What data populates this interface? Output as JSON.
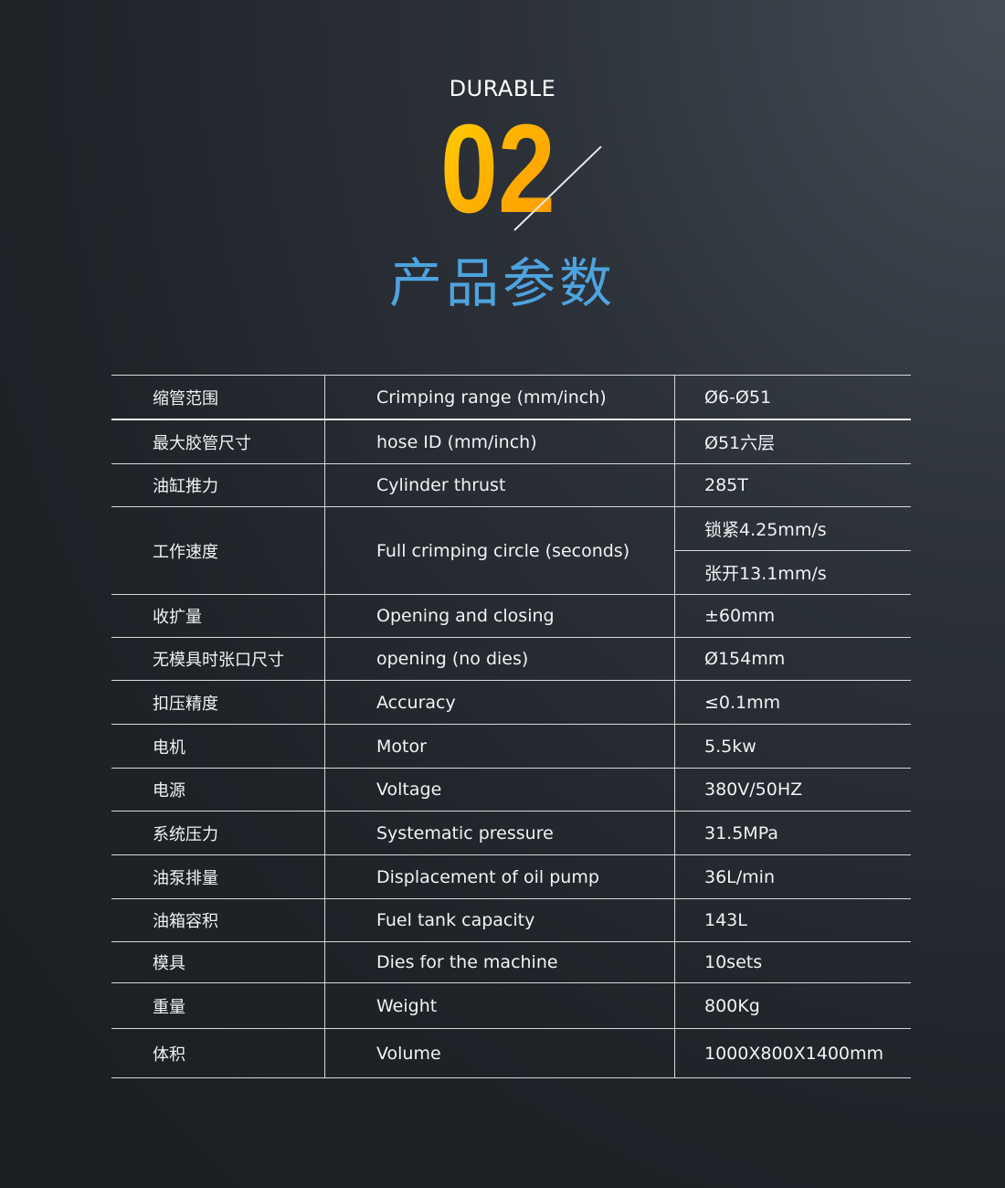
{
  "header": {
    "eyebrow": "DURABLE",
    "number": "02",
    "title": "产品参数",
    "accent_color": "#4ea3dd",
    "number_color": "#ffb000"
  },
  "specs": [
    {
      "zh": "缩管范围",
      "en": "Crimping range (mm/inch)",
      "values": [
        "Ø6-Ø51"
      ]
    },
    {
      "zh": "最大胶管尺寸",
      "en": "hose ID (mm/inch)",
      "values": [
        "Ø51六层"
      ]
    },
    {
      "zh": "油缸推力",
      "en": "Cylinder thrust",
      "values": [
        "285T"
      ]
    },
    {
      "zh": "工作速度",
      "en": "Full crimping circle (seconds)",
      "values": [
        "锁紧4.25mm/s",
        "张开13.1mm/s"
      ]
    },
    {
      "zh": "收扩量",
      "en": "Opening and closing",
      "values": [
        "±60mm"
      ]
    },
    {
      "zh": "无模具时张口尺寸",
      "en": "opening (no dies)",
      "values": [
        "Ø154mm"
      ]
    },
    {
      "zh": "扣压精度",
      "en": "Accuracy",
      "values": [
        "≤0.1mm"
      ]
    },
    {
      "zh": "电机",
      "en": "Motor",
      "values": [
        "5.5kw"
      ]
    },
    {
      "zh": "电源",
      "en": "Voltage",
      "values": [
        "380V/50HZ"
      ]
    },
    {
      "zh": "系统压力",
      "en": "Systematic pressure",
      "values": [
        "31.5MPa"
      ]
    },
    {
      "zh": "油泵排量",
      "en": "Displacement of oil pump",
      "values": [
        "36L/min"
      ]
    },
    {
      "zh": "油箱容积",
      "en": "Fuel tank capacity",
      "values": [
        "143L"
      ]
    },
    {
      "zh": "模具",
      "en": "Dies for the machine",
      "values": [
        "10sets"
      ]
    },
    {
      "zh": "重量",
      "en": "Weight",
      "values": [
        "800Kg"
      ]
    },
    {
      "zh": "体积",
      "en": "Volume",
      "values": [
        "1000X800X1400mm"
      ]
    }
  ]
}
